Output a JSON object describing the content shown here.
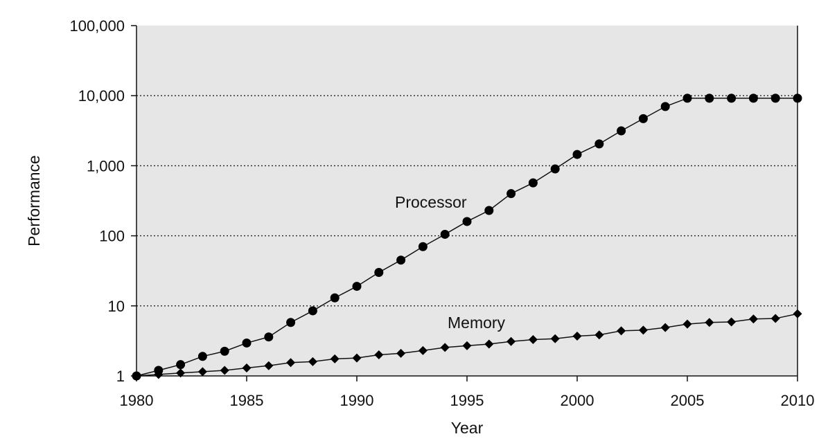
{
  "chart_data": {
    "type": "line",
    "title": "",
    "xlabel": "Year",
    "ylabel": "Performance",
    "yscale": "log",
    "xlim": [
      1980,
      2010
    ],
    "ylim": [
      1,
      100000
    ],
    "grid": "horizontal dotted",
    "colors": {
      "plot_background": "#e6e6e6",
      "line": "#111111",
      "marker": "#000000",
      "grid": "#222222"
    },
    "x_ticks": [
      1980,
      1985,
      1990,
      1995,
      2000,
      2005,
      2010
    ],
    "x_tick_labels": [
      "1980",
      "1985",
      "1990",
      "1995",
      "2000",
      "2005",
      "2010"
    ],
    "y_ticks": [
      1,
      10,
      100,
      1000,
      10000,
      100000
    ],
    "y_tick_labels": [
      "1",
      "10",
      "100",
      "1,000",
      "10,000",
      "100,000"
    ],
    "x": [
      1980,
      1981,
      1982,
      1983,
      1984,
      1985,
      1986,
      1987,
      1988,
      1989,
      1990,
      1991,
      1992,
      1993,
      1994,
      1995,
      1996,
      1997,
      1998,
      1999,
      2000,
      2001,
      2002,
      2003,
      2004,
      2005,
      2006,
      2007,
      2008,
      2009,
      2010
    ],
    "series": [
      {
        "name": "Processor",
        "label": "Processor",
        "marker": "circle",
        "values": [
          1,
          1.2,
          1.45,
          1.9,
          2.25,
          2.95,
          3.6,
          5.8,
          8.5,
          13,
          19,
          30,
          45,
          70,
          105,
          160,
          230,
          400,
          570,
          900,
          1450,
          2050,
          3150,
          4700,
          7000,
          9200,
          9200,
          9200,
          9200,
          9200,
          9200
        ]
      },
      {
        "name": "Memory",
        "label": "Memory",
        "marker": "diamond",
        "values": [
          1,
          1.05,
          1.1,
          1.15,
          1.2,
          1.3,
          1.4,
          1.55,
          1.6,
          1.75,
          1.8,
          2.0,
          2.1,
          2.3,
          2.55,
          2.7,
          2.85,
          3.1,
          3.3,
          3.4,
          3.7,
          3.85,
          4.4,
          4.5,
          4.9,
          5.5,
          5.8,
          5.9,
          6.5,
          6.6,
          7.7
        ]
      }
    ]
  }
}
